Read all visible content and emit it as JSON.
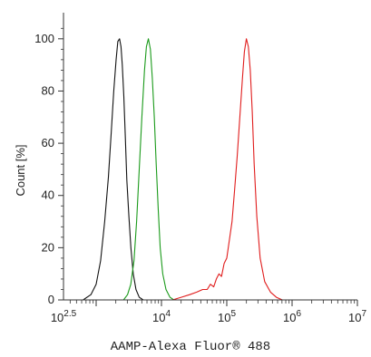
{
  "chart_data": {
    "type": "line",
    "title": "",
    "xlabel": "AAMP-Alexa Fluor® 488",
    "ylabel": "Count [%]",
    "x_scale": "log",
    "xlim": [
      316.23,
      10000000
    ],
    "ylim": [
      0,
      110
    ],
    "x_tick_labels": [
      {
        "value": 316.23,
        "base": "10",
        "exp": "2.5"
      },
      {
        "value": 10000,
        "base": "10",
        "exp": "4"
      },
      {
        "value": 100000,
        "base": "10",
        "exp": "5"
      },
      {
        "value": 1000000,
        "base": "10",
        "exp": "6"
      },
      {
        "value": 10000000,
        "base": "10",
        "exp": "7"
      }
    ],
    "y_ticks": [
      0,
      20,
      40,
      60,
      80,
      100
    ],
    "y_tick_labels": [
      "0",
      "20",
      "40",
      "60",
      "80",
      "100"
    ],
    "grid": false,
    "series": [
      {
        "color": "#111111",
        "x": [
          630,
          830,
          1000,
          1170,
          1350,
          1540,
          1700,
          1860,
          2020,
          2150,
          2280,
          2400,
          2510,
          2650,
          2800,
          2950,
          3170,
          3400,
          3700,
          4070,
          4570,
          5250
        ],
        "y": [
          0,
          2,
          6,
          15,
          30,
          47,
          64,
          80,
          92,
          99,
          100,
          97,
          90,
          78,
          62,
          46,
          32,
          20,
          10,
          4,
          1,
          0
        ]
      },
      {
        "color": "#1a9a1a",
        "x": [
          2630,
          3020,
          3390,
          3800,
          4170,
          4570,
          5010,
          5500,
          5890,
          6310,
          6760,
          7240,
          7760,
          8320,
          8910,
          9550,
          10470,
          11750,
          13490,
          15490
        ],
        "y": [
          0,
          2,
          6,
          15,
          30,
          50,
          70,
          88,
          97,
          100,
          96,
          85,
          70,
          52,
          35,
          20,
          10,
          4,
          1,
          0
        ]
      },
      {
        "color": "#e01c1c",
        "x": [
          14790,
          20000,
          27000,
          34700,
          42700,
          50100,
          56200,
          63100,
          69200,
          75900,
          83200,
          91200,
          100000,
          109600,
          120200,
          131800,
          144500,
          158500,
          173800,
          186200,
          199500,
          213800,
          229100,
          245500,
          263000,
          288400,
          324000,
          380200,
          467700,
          575400,
          707900
        ],
        "y": [
          0,
          1,
          2,
          3,
          4,
          4,
          6,
          5,
          8,
          10,
          9,
          14,
          16,
          23,
          30,
          42,
          55,
          70,
          85,
          95,
          100,
          97,
          88,
          72,
          52,
          32,
          16,
          7,
          3,
          1,
          0
        ]
      }
    ]
  }
}
